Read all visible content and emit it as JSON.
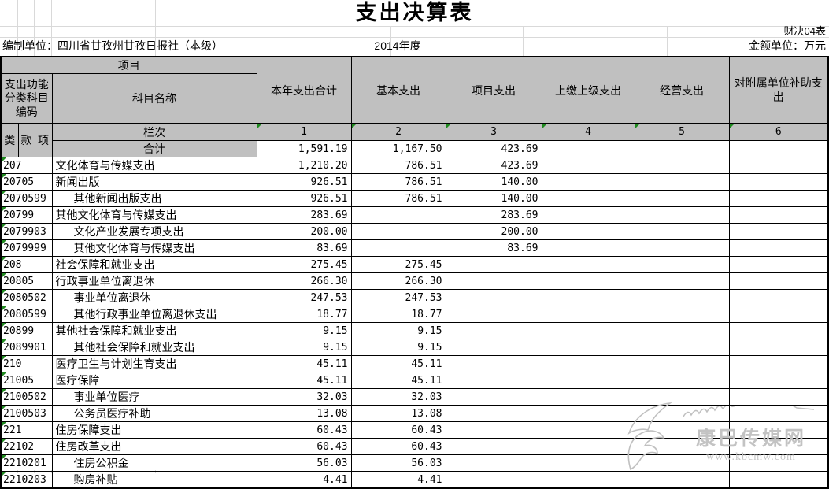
{
  "title": "支出决算表",
  "meta": {
    "form_code": "财决04表",
    "prepared_by": "编制单位：四川省甘孜州甘孜日报社（本级）",
    "year": "2014年度",
    "unit": "金额单位：万元"
  },
  "header": {
    "project_label": "项目",
    "code_label": "支出功能分类科目编码",
    "subject_label": "科目名称",
    "code_cols": [
      "类",
      "款",
      "项"
    ],
    "columns": [
      "本年支出合计",
      "基本支出",
      "项目支出",
      "上缴上级支出",
      "经营支出",
      "对附属单位补助支出"
    ],
    "lanci_label": "栏次",
    "col_numbers": [
      "1",
      "2",
      "3",
      "4",
      "5",
      "6"
    ],
    "total_label": "合计"
  },
  "totals": [
    "1,591.19",
    "1,167.50",
    "423.69",
    "",
    "",
    ""
  ],
  "rows": [
    {
      "code": "207",
      "name": "文化体育与传媒支出",
      "indent": 0,
      "values": [
        "1,210.20",
        "786.51",
        "423.69",
        "",
        "",
        ""
      ]
    },
    {
      "code": "20705",
      "name": "新闻出版",
      "indent": 0,
      "values": [
        "926.51",
        "786.51",
        "140.00",
        "",
        "",
        ""
      ]
    },
    {
      "code": "2070599",
      "name": "其他新闻出版支出",
      "indent": 1,
      "values": [
        "926.51",
        "786.51",
        "140.00",
        "",
        "",
        ""
      ]
    },
    {
      "code": "20799",
      "name": "其他文化体育与传媒支出",
      "indent": 0,
      "values": [
        "283.69",
        "",
        "283.69",
        "",
        "",
        ""
      ]
    },
    {
      "code": "2079903",
      "name": "文化产业发展专项支出",
      "indent": 1,
      "values": [
        "200.00",
        "",
        "200.00",
        "",
        "",
        ""
      ]
    },
    {
      "code": "2079999",
      "name": "其他文化体育与传媒支出",
      "indent": 1,
      "values": [
        "83.69",
        "",
        "83.69",
        "",
        "",
        ""
      ]
    },
    {
      "code": "208",
      "name": "社会保障和就业支出",
      "indent": 0,
      "values": [
        "275.45",
        "275.45",
        "",
        "",
        "",
        ""
      ]
    },
    {
      "code": "20805",
      "name": "行政事业单位离退休",
      "indent": 0,
      "values": [
        "266.30",
        "266.30",
        "",
        "",
        "",
        ""
      ]
    },
    {
      "code": "2080502",
      "name": "事业单位离退休",
      "indent": 1,
      "values": [
        "247.53",
        "247.53",
        "",
        "",
        "",
        ""
      ]
    },
    {
      "code": "2080599",
      "name": "其他行政事业单位离退休支出",
      "indent": 1,
      "values": [
        "18.77",
        "18.77",
        "",
        "",
        "",
        ""
      ]
    },
    {
      "code": "20899",
      "name": "其他社会保障和就业支出",
      "indent": 0,
      "values": [
        "9.15",
        "9.15",
        "",
        "",
        "",
        ""
      ]
    },
    {
      "code": "2089901",
      "name": "其他社会保障和就业支出",
      "indent": 1,
      "values": [
        "9.15",
        "9.15",
        "",
        "",
        "",
        ""
      ]
    },
    {
      "code": "210",
      "name": "医疗卫生与计划生育支出",
      "indent": 0,
      "values": [
        "45.11",
        "45.11",
        "",
        "",
        "",
        ""
      ]
    },
    {
      "code": "21005",
      "name": "医疗保障",
      "indent": 0,
      "values": [
        "45.11",
        "45.11",
        "",
        "",
        "",
        ""
      ]
    },
    {
      "code": "2100502",
      "name": "事业单位医疗",
      "indent": 1,
      "values": [
        "32.03",
        "32.03",
        "",
        "",
        "",
        ""
      ]
    },
    {
      "code": "2100503",
      "name": "公务员医疗补助",
      "indent": 1,
      "values": [
        "13.08",
        "13.08",
        "",
        "",
        "",
        ""
      ]
    },
    {
      "code": "221",
      "name": "住房保障支出",
      "indent": 0,
      "values": [
        "60.43",
        "60.43",
        "",
        "",
        "",
        ""
      ]
    },
    {
      "code": "22102",
      "name": "住房改革支出",
      "indent": 0,
      "values": [
        "60.43",
        "60.43",
        "",
        "",
        "",
        ""
      ]
    },
    {
      "code": "2210201",
      "name": "住房公积金",
      "indent": 1,
      "values": [
        "56.03",
        "56.03",
        "",
        "",
        "",
        ""
      ]
    },
    {
      "code": "2210203",
      "name": "购房补贴",
      "indent": 1,
      "values": [
        "4.41",
        "4.41",
        "",
        "",
        "",
        ""
      ]
    }
  ],
  "watermark": {
    "site_name": "康巴传媒网",
    "site_url": "www.kbcmw.com"
  },
  "colors": {
    "header_bg": "#c0c0c0",
    "border": "#000000",
    "triangle_green": "#1f8a1f",
    "gridline": "#d9d9d9",
    "watermark": "#c3c3c3"
  }
}
